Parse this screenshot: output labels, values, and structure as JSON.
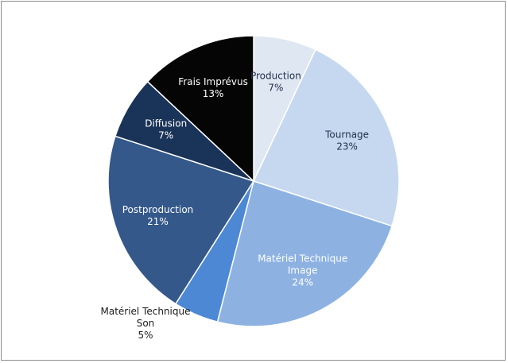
{
  "chart_data": {
    "type": "pie",
    "title": "",
    "start_angle_deg": 0,
    "direction": "clockwise",
    "slices": [
      {
        "label_lines": [
          "Production"
        ],
        "value_text": "7%",
        "value": 7,
        "color": "#dfe7f2",
        "label_color": "#1f2f4a",
        "label_pos": "inside"
      },
      {
        "label_lines": [
          "Tournage"
        ],
        "value_text": "23%",
        "value": 23,
        "color": "#c6d8f0",
        "label_color": "#1f2f4a",
        "label_pos": "inside"
      },
      {
        "label_lines": [
          "Matériel Technique",
          "Image"
        ],
        "value_text": "24%",
        "value": 24,
        "color": "#8db2e2",
        "label_color": "#ffffff",
        "label_pos": "inside"
      },
      {
        "label_lines": [
          "Matériel Technique",
          "Son"
        ],
        "value_text": "5%",
        "value": 5,
        "color": "#4c88d4",
        "label_color": "#1a1a1a",
        "label_pos": "outside"
      },
      {
        "label_lines": [
          "Postproduction"
        ],
        "value_text": "21%",
        "value": 21,
        "color": "#34588a",
        "label_color": "#ffffff",
        "label_pos": "inside"
      },
      {
        "label_lines": [
          "Diffusion"
        ],
        "value_text": "7%",
        "value": 7,
        "color": "#1a3358",
        "label_color": "#ffffff",
        "label_pos": "inside"
      },
      {
        "label_lines": [
          "Frais Imprévus"
        ],
        "value_text": "13%",
        "value": 13,
        "color": "#050505",
        "label_color": "#ffffff",
        "label_pos": "inside"
      }
    ]
  }
}
